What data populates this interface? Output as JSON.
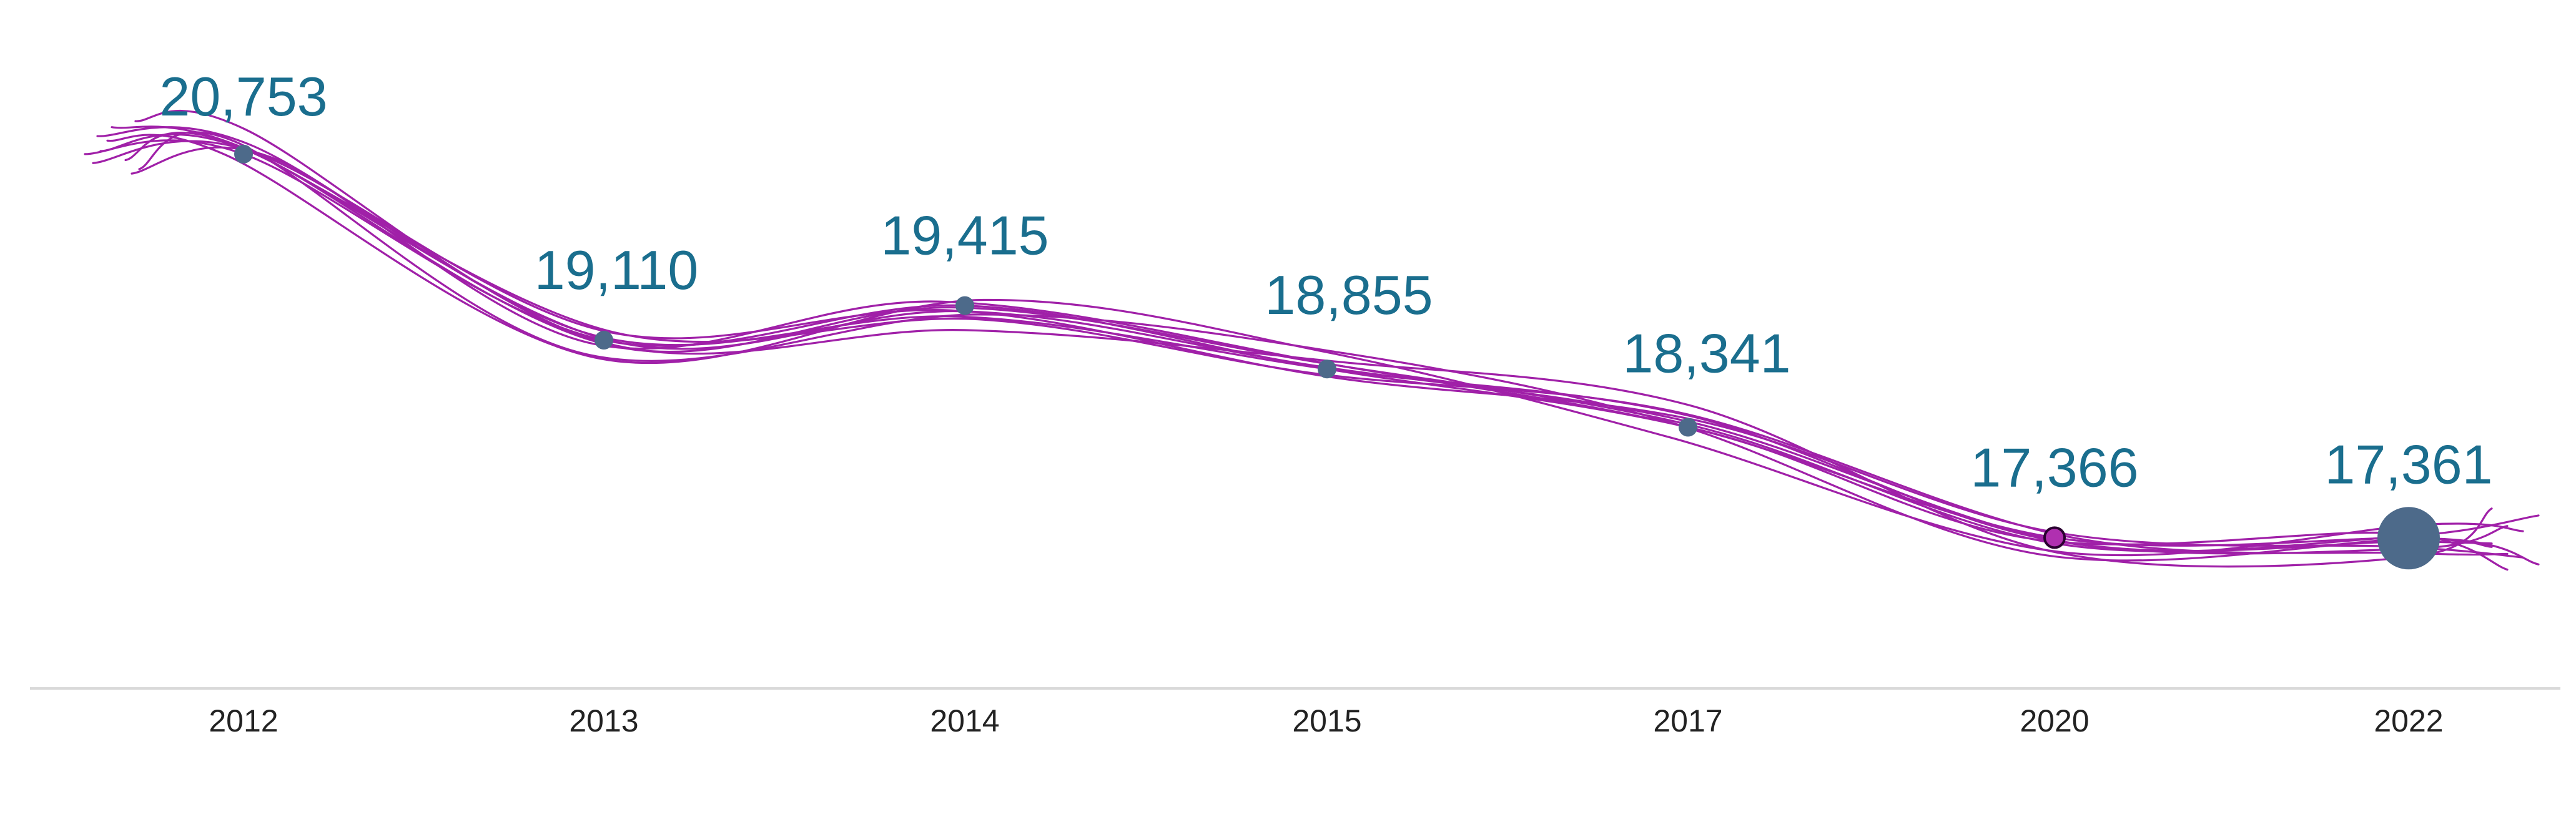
{
  "chart_data": {
    "type": "line",
    "title": "",
    "xlabel": "",
    "ylabel": "",
    "categories": [
      "2012",
      "2013",
      "2014",
      "2015",
      "2017",
      "2020",
      "2022"
    ],
    "values": [
      20753,
      19110,
      19415,
      18855,
      18341,
      17366,
      17361
    ],
    "value_labels": [
      "20,753",
      "19,110",
      "19,415",
      "18,855",
      "18,341",
      "17,366",
      "17,361"
    ],
    "ylim": [
      16850,
      21050
    ],
    "grid": false,
    "legend": "none",
    "highlight_index": 5,
    "emphasis_index": 6
  },
  "colors": {
    "lines": "#a020a8",
    "marker": "#4d6a8a",
    "highlight_marker": "#b030b0",
    "value_label": "#1a6e8e",
    "tick_label": "#222222",
    "axis": "#d9d9d9"
  }
}
